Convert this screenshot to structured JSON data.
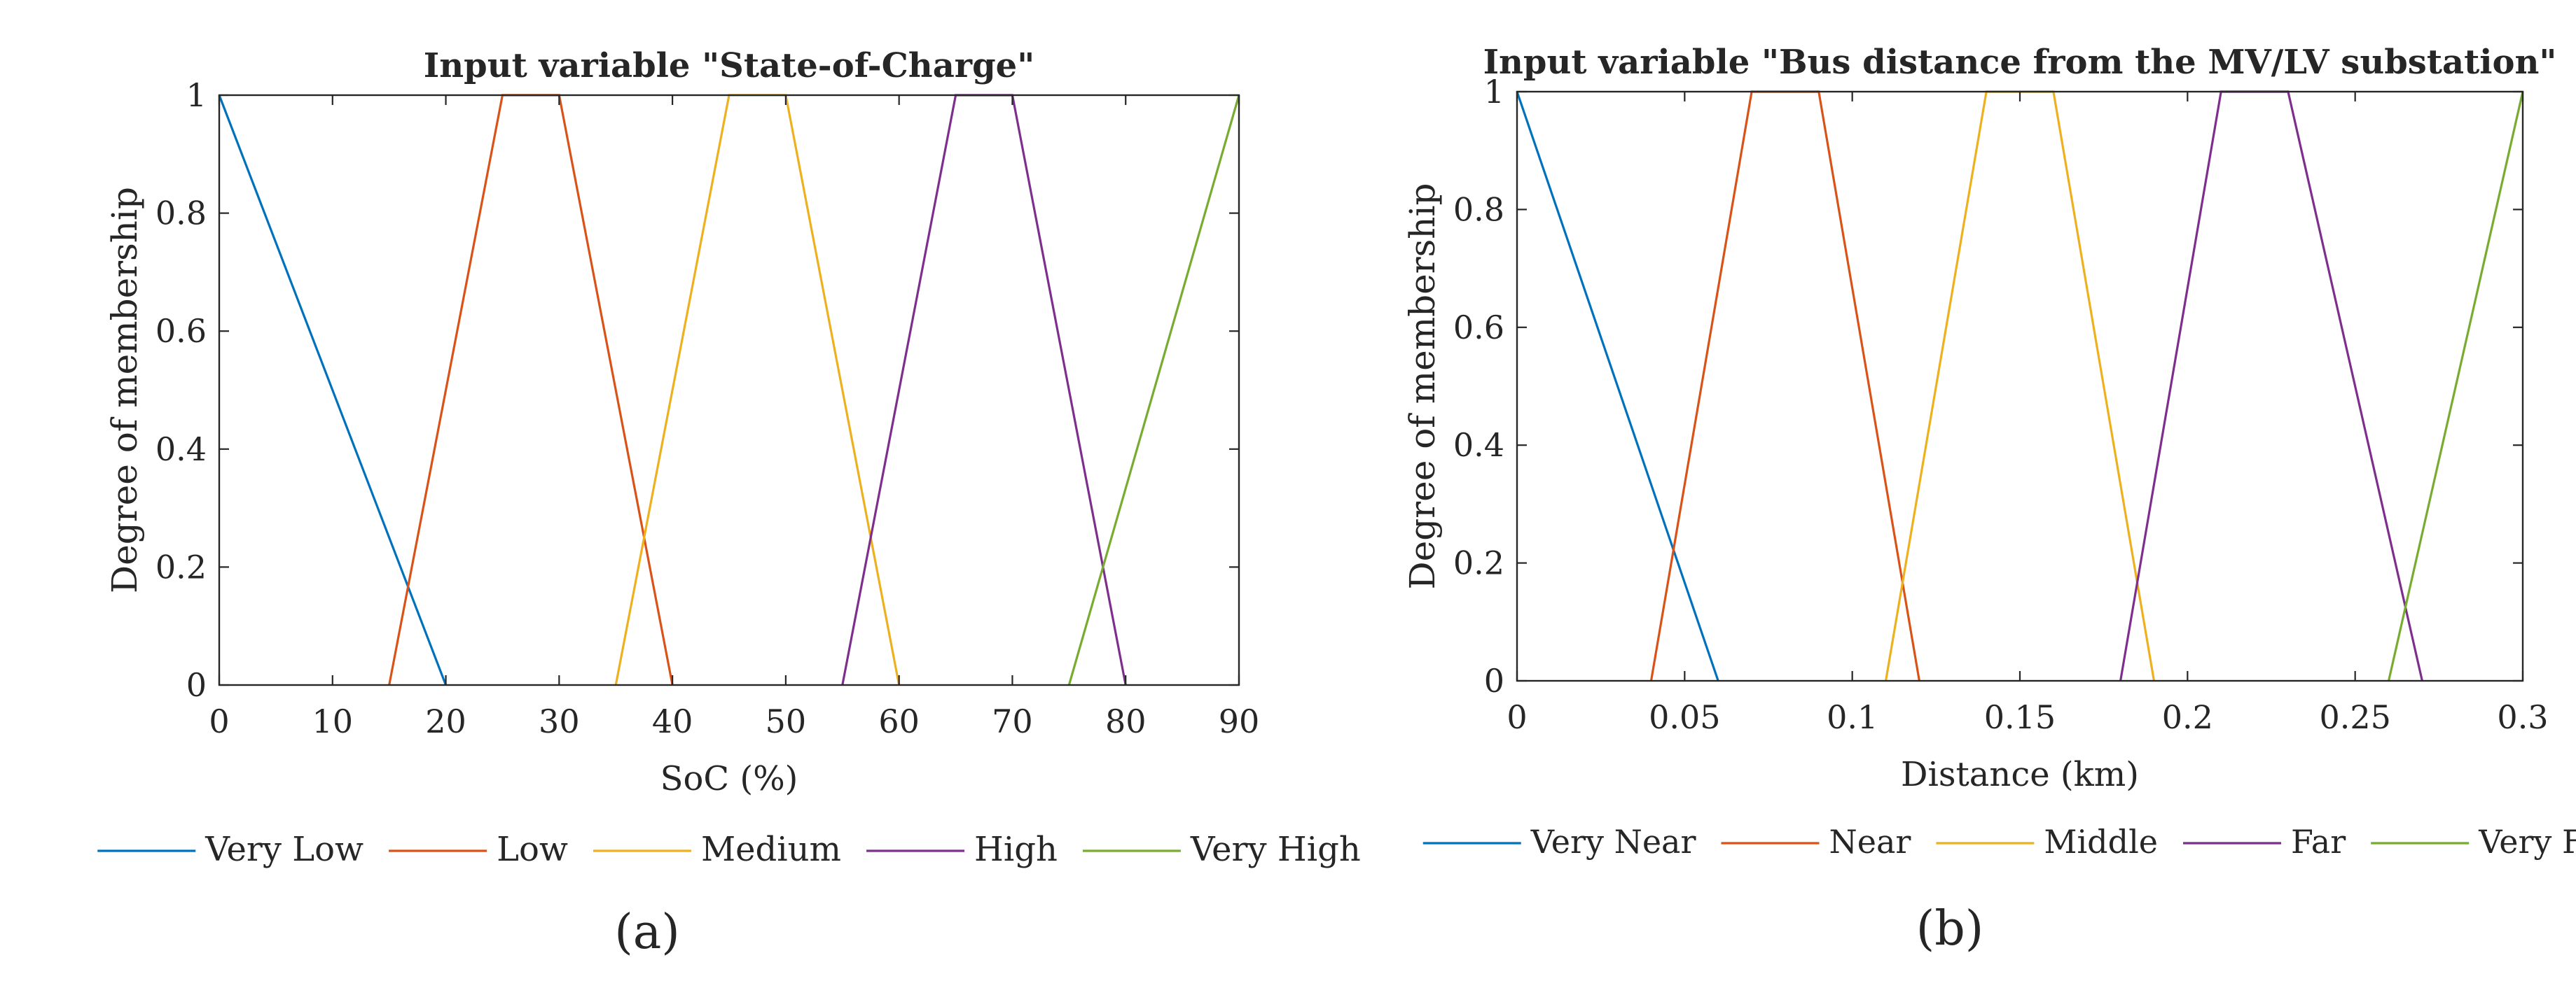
{
  "chart_data": [
    {
      "type": "line",
      "title": "Input variable \"State-of-Charge\"",
      "xlabel": "SoC (%)",
      "ylabel": "Degree of membership",
      "xlim": [
        0,
        90
      ],
      "ylim": [
        0,
        1
      ],
      "xticks": [
        0,
        10,
        20,
        30,
        40,
        50,
        60,
        70,
        80,
        90
      ],
      "xtick_labels": [
        "0",
        "10",
        "20",
        "30",
        "40",
        "50",
        "60",
        "70",
        "80",
        "90"
      ],
      "yticks": [
        0,
        0.2,
        0.4,
        0.6,
        0.8,
        1
      ],
      "ytick_labels": [
        "0",
        "0.2",
        "0.4",
        "0.6",
        "0.8",
        "1"
      ],
      "grid": false,
      "legend_position": "bottom",
      "panel_label": "(a)",
      "series": [
        {
          "name": "Very Low",
          "color": "#0072BD",
          "x": [
            0,
            20
          ],
          "y": [
            1,
            0
          ]
        },
        {
          "name": "Low",
          "color": "#D95319",
          "x": [
            15,
            25,
            30,
            40
          ],
          "y": [
            0,
            1,
            1,
            0
          ]
        },
        {
          "name": "Medium",
          "color": "#EDB120",
          "x": [
            35,
            45,
            50,
            60
          ],
          "y": [
            0,
            1,
            1,
            0
          ]
        },
        {
          "name": "High",
          "color": "#7E2F8E",
          "x": [
            55,
            65,
            70,
            80
          ],
          "y": [
            0,
            1,
            1,
            0
          ]
        },
        {
          "name": "Very High",
          "color": "#77AC30",
          "x": [
            75,
            90
          ],
          "y": [
            0,
            1
          ]
        }
      ]
    },
    {
      "type": "line",
      "title": "Input variable \"Bus distance from the MV/LV substation\"",
      "xlabel": "Distance (km)",
      "ylabel": "Degree of membership",
      "xlim": [
        0,
        0.3
      ],
      "ylim": [
        0,
        1
      ],
      "xticks": [
        0,
        0.05,
        0.1,
        0.15,
        0.2,
        0.25,
        0.3
      ],
      "xtick_labels": [
        "0",
        "0.05",
        "0.1",
        "0.15",
        "0.2",
        "0.25",
        "0.3"
      ],
      "yticks": [
        0,
        0.2,
        0.4,
        0.6,
        0.8,
        1
      ],
      "ytick_labels": [
        "0",
        "0.2",
        "0.4",
        "0.6",
        "0.8",
        "1"
      ],
      "grid": false,
      "legend_position": "bottom",
      "panel_label": "(b)",
      "series": [
        {
          "name": "Very Near",
          "color": "#0072BD",
          "x": [
            0,
            0.06
          ],
          "y": [
            1,
            0
          ]
        },
        {
          "name": "Near",
          "color": "#D95319",
          "x": [
            0.04,
            0.07,
            0.09,
            0.12
          ],
          "y": [
            0,
            1,
            1,
            0
          ]
        },
        {
          "name": "Middle",
          "color": "#EDB120",
          "x": [
            0.11,
            0.14,
            0.16,
            0.19
          ],
          "y": [
            0,
            1,
            1,
            0
          ]
        },
        {
          "name": "Far",
          "color": "#7E2F8E",
          "x": [
            0.18,
            0.21,
            0.23,
            0.27
          ],
          "y": [
            0,
            1,
            1,
            0
          ]
        },
        {
          "name": "Very Far",
          "color": "#77AC30",
          "x": [
            0.26,
            0.3
          ],
          "y": [
            0,
            1
          ]
        }
      ]
    }
  ]
}
